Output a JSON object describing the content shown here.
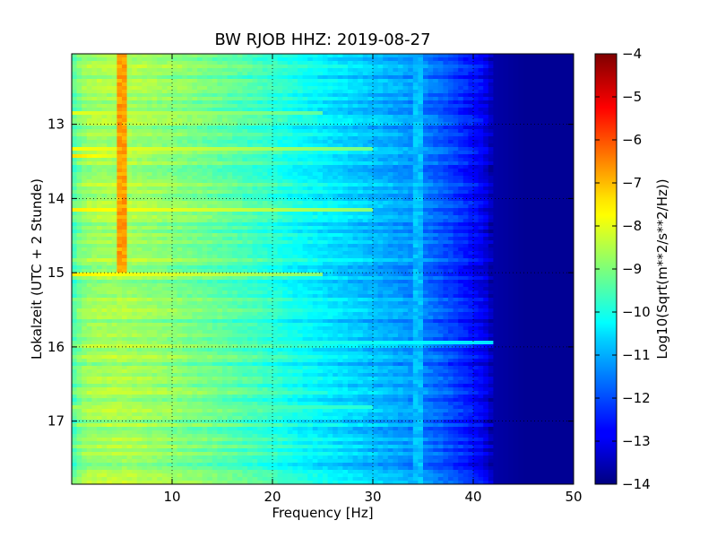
{
  "chart_data": {
    "type": "heatmap",
    "title": "BW RJOB HHZ: 2019-08-27",
    "xlabel": "Frequency [Hz]",
    "ylabel": "Lokalzeit (UTC + 2 Stunde)",
    "xlim": [
      0,
      50
    ],
    "ylim": [
      12.05,
      17.85
    ],
    "y_inverted": true,
    "x_ticks": [
      10,
      20,
      30,
      40,
      50
    ],
    "y_ticks": [
      13,
      14,
      15,
      16,
      17
    ],
    "grid": true,
    "colormap": "jet",
    "colorbar": {
      "label": "Log10(Sqrt(m**2/s**2/Hz))",
      "range": [
        -14,
        -4
      ],
      "ticks": [
        -4,
        -5,
        -6,
        -7,
        -8,
        -9,
        -10,
        -11,
        -12,
        -13,
        -14
      ]
    },
    "base_spectrum": {
      "frequency": [
        0,
        1,
        2,
        5,
        10,
        15,
        20,
        22,
        25,
        28,
        30,
        33,
        35,
        37,
        39,
        41,
        42,
        45,
        50
      ],
      "value": [
        -9.6,
        -8.9,
        -8.7,
        -8.6,
        -8.9,
        -9.3,
        -9.8,
        -10.1,
        -10.4,
        -10.7,
        -10.9,
        -11.2,
        -11.5,
        -11.9,
        -12.4,
        -12.9,
        -13.6,
        -13.8,
        -13.8
      ]
    },
    "features": [
      {
        "kind": "spectral_line",
        "frequency": 5.0,
        "time_range": [
          12.05,
          15.0
        ],
        "value": -6.8
      },
      {
        "kind": "spectral_line",
        "frequency": 34.5,
        "time_range": [
          12.05,
          17.85
        ],
        "value": -10.9
      },
      {
        "kind": "time_band",
        "time": 12.85,
        "frequency_range": [
          0,
          25
        ],
        "value": -8.0
      },
      {
        "kind": "time_band",
        "time": 13.32,
        "frequency_range": [
          0,
          30
        ],
        "value": -7.8
      },
      {
        "kind": "time_band",
        "time": 13.42,
        "frequency_range": [
          0,
          8
        ],
        "value": -7.4
      },
      {
        "kind": "time_band",
        "time": 14.15,
        "frequency_range": [
          0,
          30
        ],
        "value": -7.6
      },
      {
        "kind": "time_band",
        "time": 15.03,
        "frequency_range": [
          0,
          25
        ],
        "value": -7.6
      },
      {
        "kind": "time_band",
        "time": 15.95,
        "frequency_range": [
          0,
          42
        ],
        "value": -9.2
      },
      {
        "kind": "time_band",
        "time": 16.8,
        "frequency_range": [
          0,
          30
        ],
        "value": -8.6
      }
    ]
  },
  "colors": {
    "figure_background": "#ffffff",
    "grid": "#000000",
    "text": "#000000"
  }
}
